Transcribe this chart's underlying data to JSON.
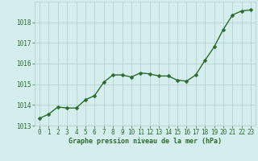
{
  "x": [
    0,
    1,
    2,
    3,
    4,
    5,
    6,
    7,
    8,
    9,
    10,
    11,
    12,
    13,
    14,
    15,
    16,
    17,
    18,
    19,
    20,
    21,
    22,
    23
  ],
  "y": [
    1013.35,
    1013.55,
    1013.9,
    1013.85,
    1013.85,
    1014.25,
    1014.45,
    1015.1,
    1015.45,
    1015.45,
    1015.35,
    1015.55,
    1015.5,
    1015.4,
    1015.4,
    1015.2,
    1015.15,
    1015.45,
    1016.15,
    1016.8,
    1017.65,
    1018.35,
    1018.55,
    1018.6
  ],
  "line_color": "#2d6a2d",
  "marker_color": "#2d6a2d",
  "bg_color": "#d4eeee",
  "grid_color": "#b0cccc",
  "xlabel": "Graphe pression niveau de la mer (hPa)",
  "xlabel_color": "#2d6a2d",
  "tick_color": "#2d6a2d",
  "ylim": [
    1013.0,
    1019.0
  ],
  "xlim": [
    -0.5,
    23.5
  ],
  "yticks": [
    1013,
    1014,
    1015,
    1016,
    1017,
    1018
  ],
  "xticks": [
    0,
    1,
    2,
    3,
    4,
    5,
    6,
    7,
    8,
    9,
    10,
    11,
    12,
    13,
    14,
    15,
    16,
    17,
    18,
    19,
    20,
    21,
    22,
    23
  ],
  "marker_size": 2.5,
  "line_width": 1.0,
  "tick_fontsize": 5.5,
  "xlabel_fontsize": 6.0
}
